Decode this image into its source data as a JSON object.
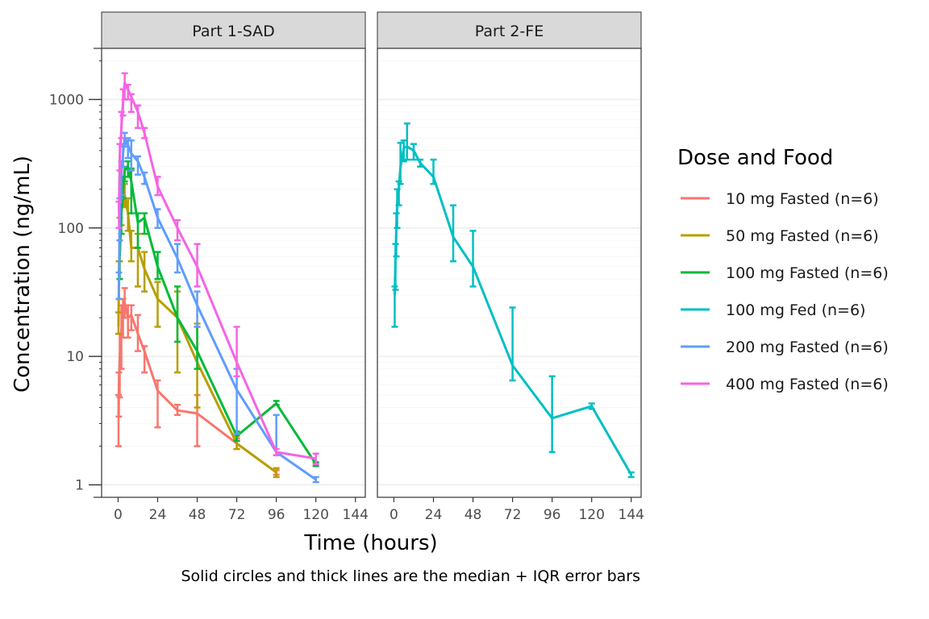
{
  "chart_data": {
    "type": "line",
    "caption": "Solid circles and thick lines are the median + IQR error bars",
    "xlabel": "Time (hours)",
    "ylabel": "Concentration (ng/mL)",
    "y_scale": "log10",
    "ylim": [
      0.8,
      2500
    ],
    "xlim": [
      -10,
      150
    ],
    "x_ticks": [
      0,
      24,
      48,
      72,
      96,
      120,
      144
    ],
    "x_tick_labels": [
      "0",
      "24",
      "48",
      "72",
      "96",
      "120",
      "144"
    ],
    "y_ticks": [
      1,
      10,
      100,
      1000
    ],
    "y_tick_labels": [
      "1",
      "10",
      "100",
      "1000"
    ],
    "grid": "horizontal major lines",
    "legend": {
      "title": "Dose and Food",
      "placement": "right",
      "entries": [
        {
          "label": "10 mg Fasted (n=6)",
          "color": "#F8766D"
        },
        {
          "label": "50 mg Fasted (n=6)",
          "color": "#B79F00"
        },
        {
          "label": "100 mg Fasted (n=6)",
          "color": "#00BA38"
        },
        {
          "label": "100 mg Fed (n=6)",
          "color": "#00BFC4"
        },
        {
          "label": "200 mg Fasted (n=6)",
          "color": "#619CFF"
        },
        {
          "label": "400 mg Fasted (n=6)",
          "color": "#F564E3"
        }
      ]
    },
    "panels": [
      {
        "title": "Part 1-SAD",
        "series": [
          {
            "legend_index": 0,
            "x": [
              0.25,
              0.5,
              1,
              2,
              3,
              4,
              6,
              8,
              12,
              16,
              24,
              36,
              48,
              72,
              96
            ],
            "y": [
              3.5,
              6,
              10,
              16,
              22,
              26,
              20,
              21,
              15,
              11,
              5.4,
              3.8,
              3.6,
              2.1,
              1.25
            ],
            "lo": [
              2,
              3.4,
              4.8,
              8,
              14,
              20,
              14,
              16,
              11,
              7.5,
              2.8,
              3.5,
              2,
              1.9,
              1.2
            ],
            "hi": [
              5,
              7.5,
              15,
              25,
              28,
              34,
              25,
              25,
              21,
              12,
              6.5,
              4.2,
              5,
              2.3,
              1.3
            ]
          },
          {
            "legend_index": 1,
            "x": [
              0.25,
              0.5,
              1,
              2,
              3,
              4,
              6,
              8,
              12,
              16,
              24,
              36,
              48,
              72,
              96
            ],
            "y": [
              17,
              40,
              90,
              150,
              200,
              180,
              130,
              70,
              70,
              48,
              28,
              20,
              9,
              2.1,
              1.25
            ],
            "lo": [
              15,
              28,
              55,
              105,
              150,
              145,
              95,
              55,
              35,
              32,
              17,
              7.5,
              4,
              1.9,
              1.15
            ],
            "hi": [
              22,
              55,
              120,
              190,
              230,
              220,
              170,
              95,
              90,
              65,
              38,
              32,
              18,
              2.4,
              1.35
            ]
          },
          {
            "legend_index": 2,
            "x": [
              1,
              2,
              3,
              4,
              6,
              8,
              12,
              16,
              24,
              36,
              48,
              72,
              96,
              120
            ],
            "y": [
              60,
              130,
              200,
              280,
              300,
              230,
              110,
              120,
              50,
              20,
              11,
              2.4,
              4.3,
              1.45
            ],
            "lo": [
              40,
              90,
              170,
              230,
              250,
              130,
              70,
              90,
              40,
              13,
              8,
              2.2,
              4.2,
              1.4
            ],
            "hi": [
              80,
              170,
              250,
              300,
              330,
              290,
              130,
              130,
              65,
              35,
              17,
              2.6,
              4.5,
              1.5
            ]
          },
          {
            "legend_index": 4,
            "x": [
              0.5,
              1,
              2,
              3,
              4,
              6,
              8,
              12,
              16,
              24,
              36,
              48,
              72,
              96,
              120
            ],
            "y": [
              35,
              130,
              260,
              380,
              500,
              440,
              380,
              330,
              250,
              120,
              58,
              25,
              5.5,
              1.8,
              1.1
            ],
            "lo": [
              28,
              80,
              180,
              300,
              430,
              350,
              280,
              260,
              220,
              100,
              45,
              17,
              2.5,
              1.7,
              1.05
            ],
            "hi": [
              45,
              170,
              330,
              450,
              550,
              500,
              480,
              360,
              270,
              140,
              75,
              32,
              8,
              3.5,
              1.15
            ]
          },
          {
            "legend_index": 5,
            "x": [
              0.5,
              1,
              2,
              3,
              4,
              6,
              8,
              12,
              16,
              24,
              36,
              48,
              72,
              96,
              120
            ],
            "y": [
              130,
              350,
              600,
              950,
              1350,
              1200,
              1050,
              800,
              550,
              210,
              100,
              50,
              9,
              1.8,
              1.6
            ],
            "lo": [
              100,
              280,
              500,
              750,
              1000,
              1000,
              800,
              600,
              500,
              180,
              80,
              35,
              7,
              1.7,
              1.45
            ],
            "hi": [
              160,
              450,
              800,
              1200,
              1600,
              1300,
              1100,
              900,
              600,
              250,
              115,
              75,
              17,
              1.9,
              1.75
            ]
          }
        ]
      },
      {
        "title": "Part 2-FE",
        "series": [
          {
            "legend_index": 3,
            "x": [
              0.5,
              1,
              1.5,
              2,
              3,
              4,
              6,
              8,
              12,
              16,
              24,
              36,
              48,
              72,
              96,
              120,
              144
            ],
            "y": [
              30,
              60,
              100,
              150,
              200,
              300,
              420,
              430,
              400,
              320,
              250,
              85,
              50,
              8.5,
              3.3,
              4.1,
              1.2
            ],
            "lo": [
              17,
              33,
              60,
              100,
              150,
              220,
              330,
              340,
              340,
              300,
              220,
              55,
              35,
              6.5,
              1.8,
              3.9,
              1.15
            ],
            "hi": [
              35,
              75,
              130,
              200,
              230,
              460,
              480,
              650,
              450,
              340,
              340,
              150,
              95,
              24,
              7,
              4.3,
              1.25
            ]
          }
        ]
      }
    ]
  }
}
